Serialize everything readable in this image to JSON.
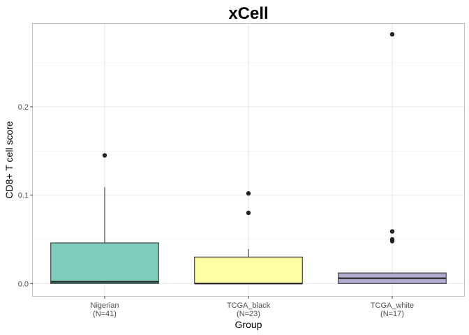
{
  "chart_data": {
    "type": "box",
    "title": "xCell",
    "xlabel": "Group",
    "ylabel": "CD8+ T cell score",
    "ylim": [
      -0.014,
      0.294
    ],
    "yticks": [
      0.0,
      0.1,
      0.2
    ],
    "ytick_labels": [
      "0.0",
      "0.1",
      "0.2"
    ],
    "grid": true,
    "legend": "none",
    "groups": [
      {
        "label": "Nigerian",
        "n_label": "(N=41)",
        "color": "#80CDBB",
        "q1": 0.0,
        "median": 0.002,
        "q3": 0.046,
        "whisker_low": 0.0,
        "whisker_high": 0.109,
        "outliers": [
          0.145
        ]
      },
      {
        "label": "TCGA_black",
        "n_label": "(N=23)",
        "color": "#FFFFA4",
        "q1": 0.0,
        "median": 0.0,
        "q3": 0.03,
        "whisker_low": 0.0,
        "whisker_high": 0.039,
        "outliers": [
          0.08,
          0.102
        ]
      },
      {
        "label": "TCGA_white",
        "n_label": "(N=17)",
        "color": "#B1AACD",
        "q1": 0.0,
        "median": 0.006,
        "q3": 0.012,
        "whisker_low": 0.0,
        "whisker_high": 0.012,
        "outliers": [
          0.048,
          0.05,
          0.059,
          0.282
        ]
      }
    ]
  }
}
